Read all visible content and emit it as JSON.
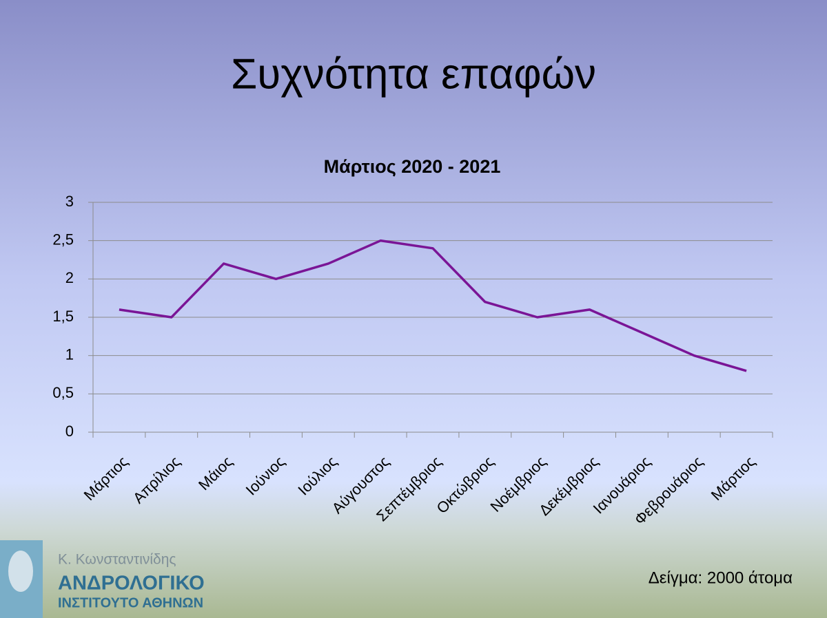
{
  "slide_title": "Συχνότητα επαφών",
  "footnote": "Δείγμα: 2000 άτομα",
  "logo": {
    "author": "Κ. Κωνσταντινίδης",
    "line1": "ΑΝΔΡΟΛΟΓΙΚΟ",
    "line2": "ΙΝΣΤΙΤΟΥΤΟ ΑΘΗΝΩΝ"
  },
  "chart_data": {
    "type": "line",
    "title": "Μάρτιος 2020 - 2021",
    "categories": [
      "Μάρτιος",
      "Απρίλιος",
      "Μάιος",
      "Ιούνιος",
      "Ιούλιος",
      "Αύγουστος",
      "Σεπτέμβριος",
      "Οκτώβριος",
      "Νοέμβριος",
      "Δεκέμβριος",
      "Ιανουάριος",
      "Φεβρουάριος",
      "Μάρτιος"
    ],
    "values": [
      1.6,
      1.5,
      2.2,
      2.0,
      2.2,
      2.5,
      2.4,
      1.7,
      1.5,
      1.6,
      1.3,
      1.0,
      0.8
    ],
    "color": "#7a1596",
    "ylim": [
      0,
      3
    ],
    "yticks": [
      0,
      {
        "value": 0.5,
        "label": "0,5"
      },
      1,
      {
        "value": 1.5,
        "label": "1,5"
      },
      2,
      {
        "value": 2.5,
        "label": "2,5"
      },
      3
    ],
    "grid": true
  }
}
